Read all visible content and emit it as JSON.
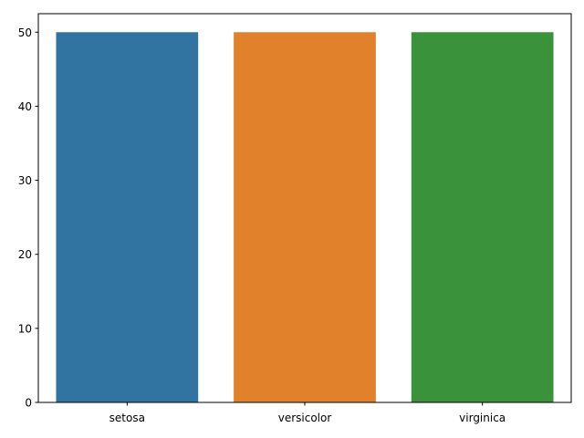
{
  "chart_data": {
    "type": "bar",
    "title": "",
    "xlabel": "",
    "ylabel": "",
    "categories": [
      "setosa",
      "versicolor",
      "virginica"
    ],
    "values": [
      50,
      50,
      50
    ],
    "colors": [
      "#3274a1",
      "#e1812c",
      "#3a923a"
    ],
    "ylim": [
      0,
      52.5
    ],
    "yticks": [
      0,
      10,
      20,
      30,
      40,
      50
    ],
    "grid": false,
    "legend": "none"
  }
}
